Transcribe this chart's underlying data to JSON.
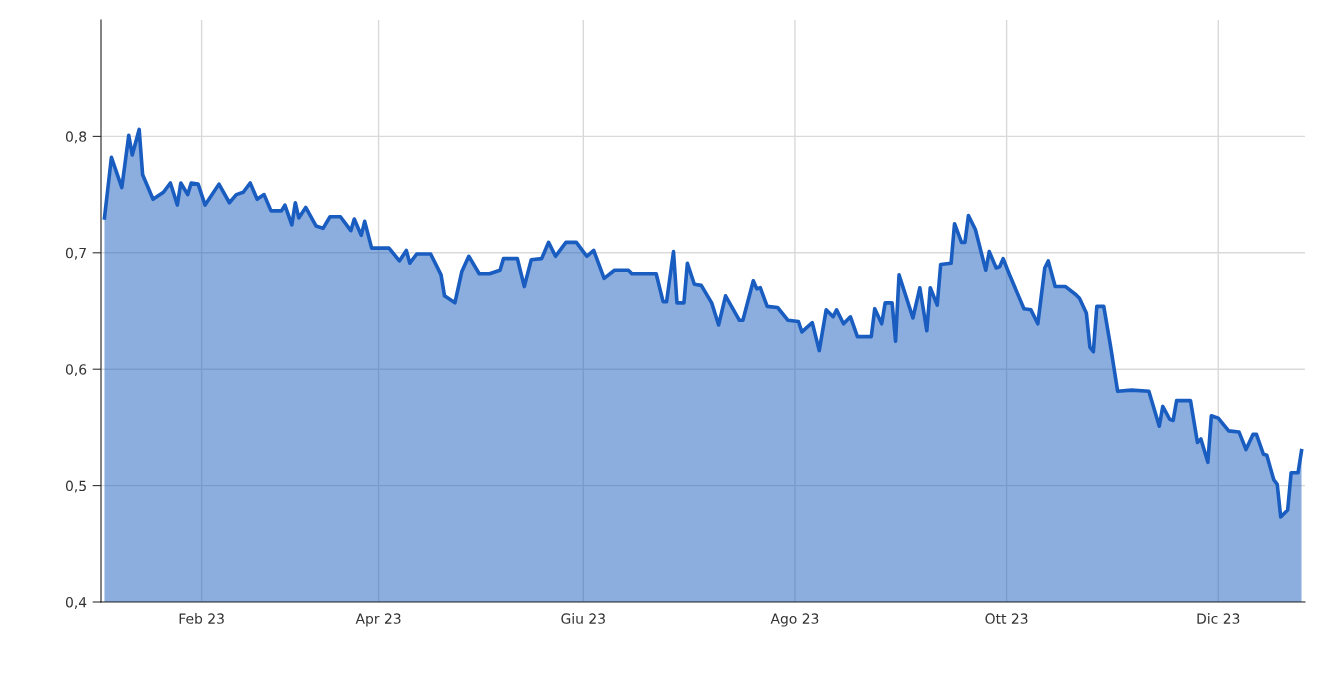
{
  "chart_data": {
    "type": "area",
    "x": [
      "2023-01-14",
      "2023-01-16",
      "2023-01-19",
      "2023-01-21",
      "2023-01-22",
      "2023-01-24",
      "2023-01-25",
      "2023-01-28",
      "2023-01-31",
      "2023-02-02",
      "2023-02-04",
      "2023-02-05",
      "2023-02-07",
      "2023-02-08",
      "2023-02-10",
      "2023-02-12",
      "2023-02-16",
      "2023-02-19",
      "2023-02-21",
      "2023-02-23",
      "2023-02-25",
      "2023-02-27",
      "2023-03-01",
      "2023-03-03",
      "2023-03-06",
      "2023-03-07",
      "2023-03-09",
      "2023-03-10",
      "2023-03-11",
      "2023-03-13",
      "2023-03-16",
      "2023-03-18",
      "2023-03-20",
      "2023-03-23",
      "2023-03-26",
      "2023-03-27",
      "2023-03-29",
      "2023-03-30",
      "2023-04-01",
      "2023-04-06",
      "2023-04-09",
      "2023-04-11",
      "2023-04-12",
      "2023-04-14",
      "2023-04-18",
      "2023-04-21",
      "2023-04-22",
      "2023-04-25",
      "2023-04-27",
      "2023-04-29",
      "2023-05-02",
      "2023-05-05",
      "2023-05-08",
      "2023-05-09",
      "2023-05-13",
      "2023-05-15",
      "2023-05-17",
      "2023-05-20",
      "2023-05-22",
      "2023-05-24",
      "2023-05-27",
      "2023-05-30",
      "2023-06-02",
      "2023-06-04",
      "2023-06-07",
      "2023-06-10",
      "2023-06-14",
      "2023-06-15",
      "2023-06-22",
      "2023-06-24",
      "2023-06-25",
      "2023-06-27",
      "2023-06-28",
      "2023-06-30",
      "2023-07-01",
      "2023-07-03",
      "2023-07-05",
      "2023-07-08",
      "2023-07-10",
      "2023-07-12",
      "2023-07-16",
      "2023-07-17",
      "2023-07-20",
      "2023-07-21",
      "2023-07-22",
      "2023-07-24",
      "2023-07-27",
      "2023-07-30",
      "2023-08-02",
      "2023-08-03",
      "2023-08-06",
      "2023-08-08",
      "2023-08-10",
      "2023-08-12",
      "2023-08-13",
      "2023-08-15",
      "2023-08-17",
      "2023-08-19",
      "2023-08-23",
      "2023-08-24",
      "2023-08-26",
      "2023-08-27",
      "2023-08-29",
      "2023-08-30",
      "2023-08-31",
      "2023-09-04",
      "2023-09-06",
      "2023-09-08",
      "2023-09-09",
      "2023-09-11",
      "2023-09-12",
      "2023-09-15",
      "2023-09-16",
      "2023-09-18",
      "2023-09-19",
      "2023-09-20",
      "2023-09-22",
      "2023-09-25",
      "2023-09-26",
      "2023-09-28",
      "2023-09-29",
      "2023-09-30",
      "2023-10-02",
      "2023-10-06",
      "2023-10-08",
      "2023-10-10",
      "2023-10-12",
      "2023-10-13",
      "2023-10-15",
      "2023-10-18",
      "2023-10-21",
      "2023-10-22",
      "2023-10-24",
      "2023-10-25",
      "2023-10-26",
      "2023-10-27",
      "2023-10-29",
      "2023-10-31",
      "2023-11-02",
      "2023-11-06",
      "2023-11-11",
      "2023-11-14",
      "2023-11-15",
      "2023-11-17",
      "2023-11-18",
      "2023-11-19",
      "2023-11-23",
      "2023-11-25",
      "2023-11-26",
      "2023-11-28",
      "2023-11-29",
      "2023-12-01",
      "2023-12-04",
      "2023-12-07",
      "2023-12-09",
      "2023-12-11",
      "2023-12-12",
      "2023-12-14",
      "2023-12-15",
      "2023-12-17",
      "2023-12-18",
      "2023-12-19",
      "2023-12-21",
      "2023-12-22",
      "2023-12-24",
      "2023-12-25"
    ],
    "series": [
      {
        "color": "#1a5dc0",
        "values": [
          0.73,
          0.782,
          0.756,
          0.801,
          0.784,
          0.806,
          0.767,
          0.746,
          0.752,
          0.76,
          0.741,
          0.76,
          0.75,
          0.76,
          0.759,
          0.741,
          0.759,
          0.743,
          0.75,
          0.752,
          0.76,
          0.746,
          0.75,
          0.736,
          0.736,
          0.741,
          0.724,
          0.743,
          0.73,
          0.739,
          0.723,
          0.721,
          0.731,
          0.731,
          0.719,
          0.729,
          0.715,
          0.727,
          0.704,
          0.704,
          0.693,
          0.702,
          0.691,
          0.699,
          0.699,
          0.681,
          0.663,
          0.657,
          0.684,
          0.697,
          0.682,
          0.682,
          0.685,
          0.695,
          0.695,
          0.671,
          0.694,
          0.695,
          0.709,
          0.697,
          0.709,
          0.709,
          0.697,
          0.702,
          0.678,
          0.685,
          0.685,
          0.682,
          0.682,
          0.658,
          0.658,
          0.701,
          0.657,
          0.657,
          0.691,
          0.673,
          0.672,
          0.657,
          0.638,
          0.663,
          0.642,
          0.642,
          0.676,
          0.669,
          0.67,
          0.654,
          0.653,
          0.642,
          0.641,
          0.632,
          0.64,
          0.616,
          0.651,
          0.645,
          0.651,
          0.639,
          0.645,
          0.628,
          0.628,
          0.652,
          0.639,
          0.657,
          0.657,
          0.624,
          0.681,
          0.644,
          0.67,
          0.633,
          0.67,
          0.655,
          0.69,
          0.691,
          0.725,
          0.709,
          0.709,
          0.732,
          0.72,
          0.685,
          0.701,
          0.687,
          0.688,
          0.695,
          0.68,
          0.652,
          0.651,
          0.639,
          0.687,
          0.693,
          0.671,
          0.671,
          0.664,
          0.661,
          0.648,
          0.619,
          0.615,
          0.654,
          0.654,
          0.619,
          0.581,
          0.582,
          0.581,
          0.551,
          0.568,
          0.557,
          0.556,
          0.573,
          0.573,
          0.537,
          0.54,
          0.52,
          0.56,
          0.558,
          0.547,
          0.546,
          0.531,
          0.544,
          0.544,
          0.527,
          0.526,
          0.505,
          0.501,
          0.473,
          0.479,
          0.511,
          0.511,
          0.53
        ]
      }
    ],
    "xlim": [
      "2023-01-13",
      "2023-12-26"
    ],
    "xticks": [
      {
        "value": "2023-02-11",
        "label": "Feb 23"
      },
      {
        "value": "2023-04-03",
        "label": "Apr 23"
      },
      {
        "value": "2023-06-01",
        "label": "Giu 23"
      },
      {
        "value": "2023-08-01",
        "label": "Ago 23"
      },
      {
        "value": "2023-10-01",
        "label": "Ott 23"
      },
      {
        "value": "2023-12-01",
        "label": "Dic 23"
      }
    ],
    "ylim": [
      0.4,
      0.9
    ],
    "yticks": [
      {
        "value": 0.4,
        "label": "0,4"
      },
      {
        "value": 0.5,
        "label": "0,5"
      },
      {
        "value": 0.6,
        "label": "0,6"
      },
      {
        "value": 0.7,
        "label": "0,7"
      },
      {
        "value": 0.8,
        "label": "0,8"
      }
    ],
    "grid": true,
    "marker": "none",
    "line_style": "solid"
  }
}
